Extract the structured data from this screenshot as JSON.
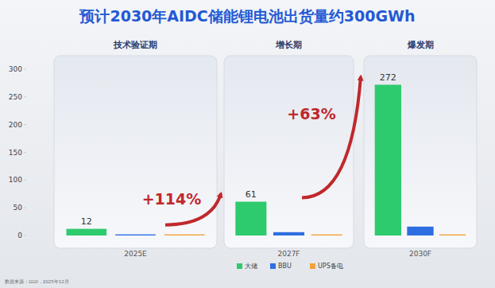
{
  "chart_data": {
    "type": "bar",
    "title": "预计2030年AIDC储能锂电池出货量约300GWh",
    "phases": [
      "技术验证期",
      "增长期",
      "爆发期"
    ],
    "categories": [
      "2025E",
      "2027F",
      "2030F"
    ],
    "series": [
      {
        "name": "大储",
        "color": "#2ecb6e",
        "values": [
          12,
          61,
          272
        ],
        "data_labels": true
      },
      {
        "name": "BBU",
        "color": "#2f6ee0",
        "values": [
          2,
          6,
          16
        ]
      },
      {
        "name": "UPS备电",
        "color": "#f2a23a",
        "values": [
          2,
          2,
          2
        ]
      }
    ],
    "annotations": [
      "+114%",
      "+63%"
    ],
    "ylim": [
      0,
      300
    ],
    "yticks": [
      0,
      50,
      100,
      150,
      200,
      250,
      300
    ],
    "grid": false,
    "legend": "bottom",
    "source": "数据来源：GGII，2025年12月"
  }
}
